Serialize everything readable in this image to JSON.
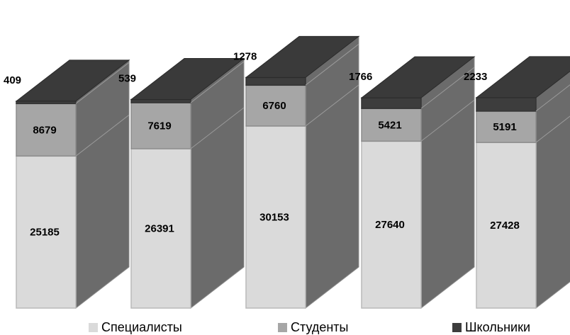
{
  "chart_data": {
    "type": "bar",
    "stacked": true,
    "style": "3d-columns",
    "categories": [
      "",
      "",
      "",
      "",
      ""
    ],
    "series": [
      {
        "name": "Специалисты",
        "values": [
          25185,
          26391,
          30153,
          27640,
          27428
        ],
        "color": "#dadada"
      },
      {
        "name": "Студенты",
        "values": [
          8679,
          7619,
          6760,
          5421,
          5191
        ],
        "color": "#a6a6a6"
      },
      {
        "name": "Школьники",
        "values": [
          409,
          539,
          1278,
          1766,
          2233
        ],
        "color": "#3d3d3d"
      }
    ],
    "title": "",
    "xlabel": "",
    "ylabel": "",
    "grid": false,
    "legend_position": "bottom"
  },
  "side_color": "#6b6b6b"
}
